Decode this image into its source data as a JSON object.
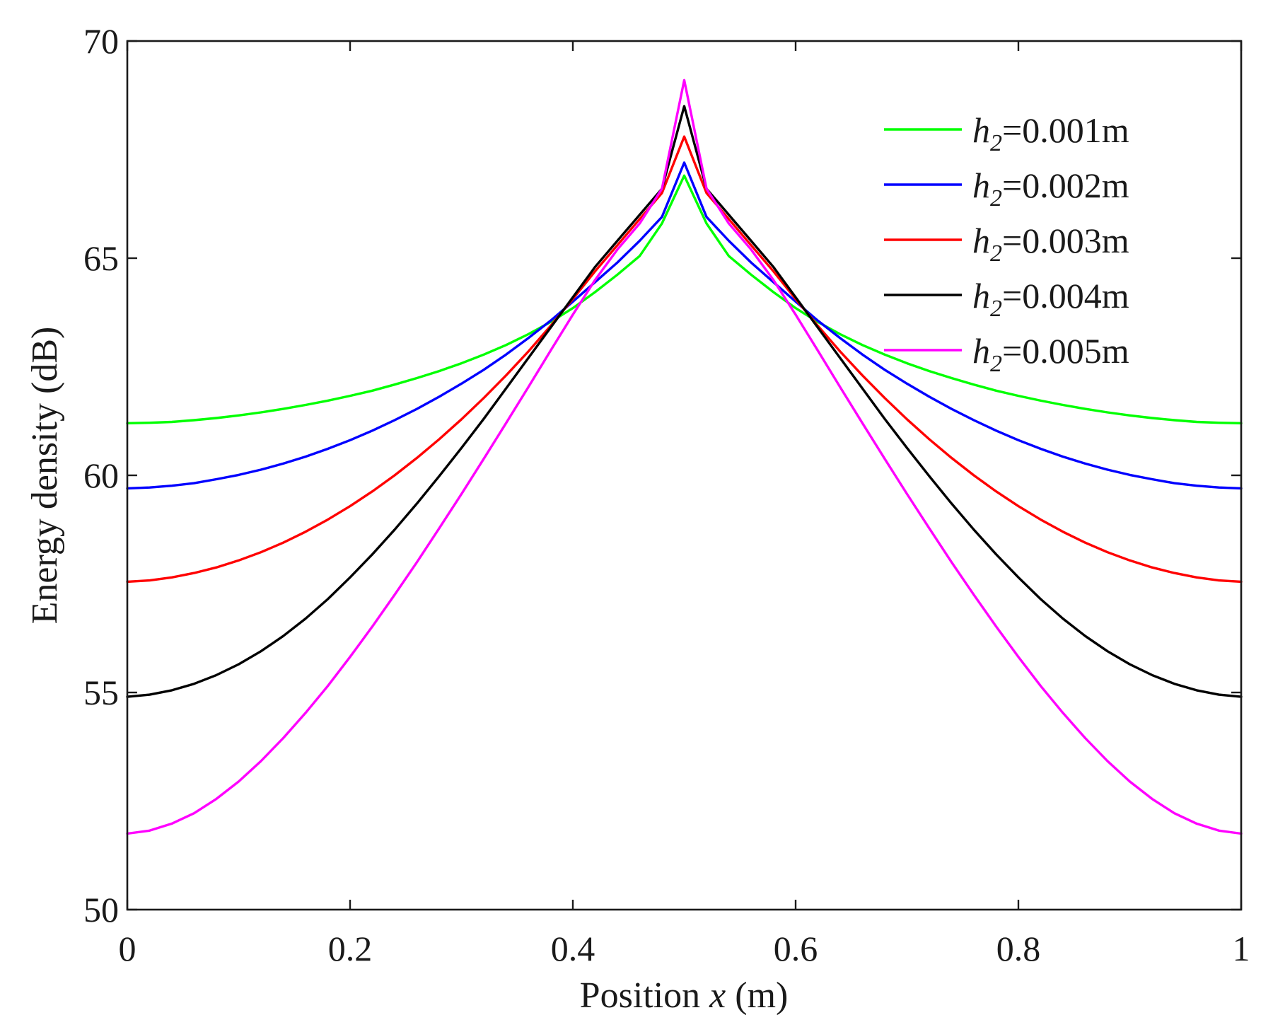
{
  "chart_data": {
    "type": "line",
    "xlabel": "Position x (m)",
    "xlabel_parts": {
      "prefix": "Position ",
      "variable": "x",
      "suffix": " (m)"
    },
    "ylabel": "Energy density (dB)",
    "xlim": [
      0,
      1
    ],
    "ylim": [
      50,
      70
    ],
    "xticks": [
      0,
      0.2,
      0.4,
      0.6,
      0.8,
      1
    ],
    "xtick_labels": [
      "0",
      "0.2",
      "0.4",
      "0.6",
      "0.8",
      "1"
    ],
    "yticks": [
      50,
      55,
      60,
      65,
      70
    ],
    "ytick_labels": [
      "50",
      "55",
      "60",
      "65",
      "70"
    ],
    "grid": false,
    "legend_position": "top-right",
    "x": [
      0,
      0.02,
      0.04,
      0.06,
      0.08,
      0.1,
      0.12,
      0.14,
      0.16,
      0.18,
      0.2,
      0.22,
      0.24,
      0.26,
      0.28,
      0.3,
      0.32,
      0.34,
      0.36,
      0.38,
      0.4,
      0.42,
      0.44,
      0.46,
      0.48,
      0.5,
      0.52,
      0.54,
      0.56,
      0.58,
      0.6,
      0.62,
      0.64,
      0.66,
      0.68,
      0.7,
      0.72,
      0.74,
      0.76,
      0.78,
      0.8,
      0.82,
      0.84,
      0.86,
      0.88,
      0.9,
      0.92,
      0.94,
      0.96,
      0.98,
      1.0
    ],
    "series": [
      {
        "name": "h2=0.001m",
        "legend": {
          "var": "h",
          "sub": "2",
          "rest": "=0.001m"
        },
        "color": "#00ff00",
        "values": [
          61.2,
          61.21,
          61.23,
          61.27,
          61.32,
          61.38,
          61.45,
          61.53,
          61.62,
          61.72,
          61.83,
          61.95,
          62.09,
          62.24,
          62.4,
          62.58,
          62.78,
          63.0,
          63.25,
          63.53,
          63.85,
          64.22,
          64.62,
          65.05,
          65.8,
          66.9,
          65.8,
          65.05,
          64.62,
          64.22,
          63.85,
          63.53,
          63.25,
          63.0,
          62.78,
          62.58,
          62.4,
          62.24,
          62.09,
          61.95,
          61.83,
          61.72,
          61.62,
          61.53,
          61.45,
          61.38,
          61.32,
          61.27,
          61.23,
          61.21,
          61.2
        ]
      },
      {
        "name": "h2=0.002m",
        "legend": {
          "var": "h",
          "sub": "2",
          "rest": "=0.002m"
        },
        "color": "#0000ff",
        "values": [
          59.7,
          59.72,
          59.76,
          59.82,
          59.91,
          60.01,
          60.13,
          60.27,
          60.43,
          60.61,
          60.81,
          61.03,
          61.27,
          61.53,
          61.81,
          62.11,
          62.43,
          62.78,
          63.16,
          63.56,
          64.0,
          64.45,
          64.9,
          65.4,
          65.95,
          67.2,
          65.95,
          65.4,
          64.9,
          64.45,
          64.0,
          63.56,
          63.16,
          62.78,
          62.43,
          62.11,
          61.81,
          61.53,
          61.27,
          61.03,
          60.81,
          60.61,
          60.43,
          60.27,
          60.13,
          60.01,
          59.91,
          59.82,
          59.76,
          59.72,
          59.7
        ]
      },
      {
        "name": "h2=0.003m",
        "legend": {
          "var": "h",
          "sub": "2",
          "rest": "=0.003m"
        },
        "color": "#ff0000",
        "values": [
          57.55,
          57.58,
          57.65,
          57.75,
          57.88,
          58.04,
          58.23,
          58.45,
          58.7,
          58.98,
          59.29,
          59.63,
          60.0,
          60.4,
          60.83,
          61.29,
          61.78,
          62.3,
          62.85,
          63.44,
          64.06,
          64.7,
          65.3,
          65.9,
          66.5,
          67.8,
          66.5,
          65.9,
          65.3,
          64.7,
          64.06,
          63.44,
          62.85,
          62.3,
          61.78,
          61.29,
          60.83,
          60.4,
          60.0,
          59.63,
          59.29,
          58.98,
          58.7,
          58.45,
          58.23,
          58.04,
          57.88,
          57.75,
          57.65,
          57.58,
          57.55
        ]
      },
      {
        "name": "h2=0.004m",
        "legend": {
          "var": "h",
          "sub": "2",
          "rest": "=0.004m"
        },
        "color": "#000000",
        "values": [
          54.9,
          54.95,
          55.05,
          55.2,
          55.4,
          55.65,
          55.95,
          56.3,
          56.7,
          57.15,
          57.65,
          58.18,
          58.75,
          59.35,
          59.98,
          60.63,
          61.3,
          62.0,
          62.7,
          63.4,
          64.1,
          64.8,
          65.4,
          66.0,
          66.6,
          68.5,
          66.6,
          66.0,
          65.4,
          64.8,
          64.1,
          63.4,
          62.7,
          62.0,
          61.3,
          60.63,
          59.98,
          59.35,
          58.75,
          58.18,
          57.65,
          57.15,
          56.7,
          56.3,
          55.95,
          55.65,
          55.4,
          55.2,
          55.05,
          54.95,
          54.9
        ]
      },
      {
        "name": "h2=0.005m",
        "legend": {
          "var": "h",
          "sub": "2",
          "rest": "=0.005m"
        },
        "color": "#ff00ff",
        "values": [
          51.75,
          51.82,
          51.98,
          52.22,
          52.55,
          52.95,
          53.42,
          53.95,
          54.53,
          55.15,
          55.82,
          56.52,
          57.25,
          58.0,
          58.78,
          59.57,
          60.38,
          61.2,
          62.03,
          62.87,
          63.7,
          64.5,
          65.2,
          65.8,
          66.6,
          69.1,
          66.6,
          65.8,
          65.2,
          64.5,
          63.7,
          62.87,
          62.03,
          61.2,
          60.38,
          59.57,
          58.78,
          58.0,
          57.25,
          56.52,
          55.82,
          55.15,
          54.53,
          53.95,
          53.42,
          52.95,
          52.55,
          52.22,
          51.98,
          51.82,
          51.75
        ]
      }
    ]
  }
}
